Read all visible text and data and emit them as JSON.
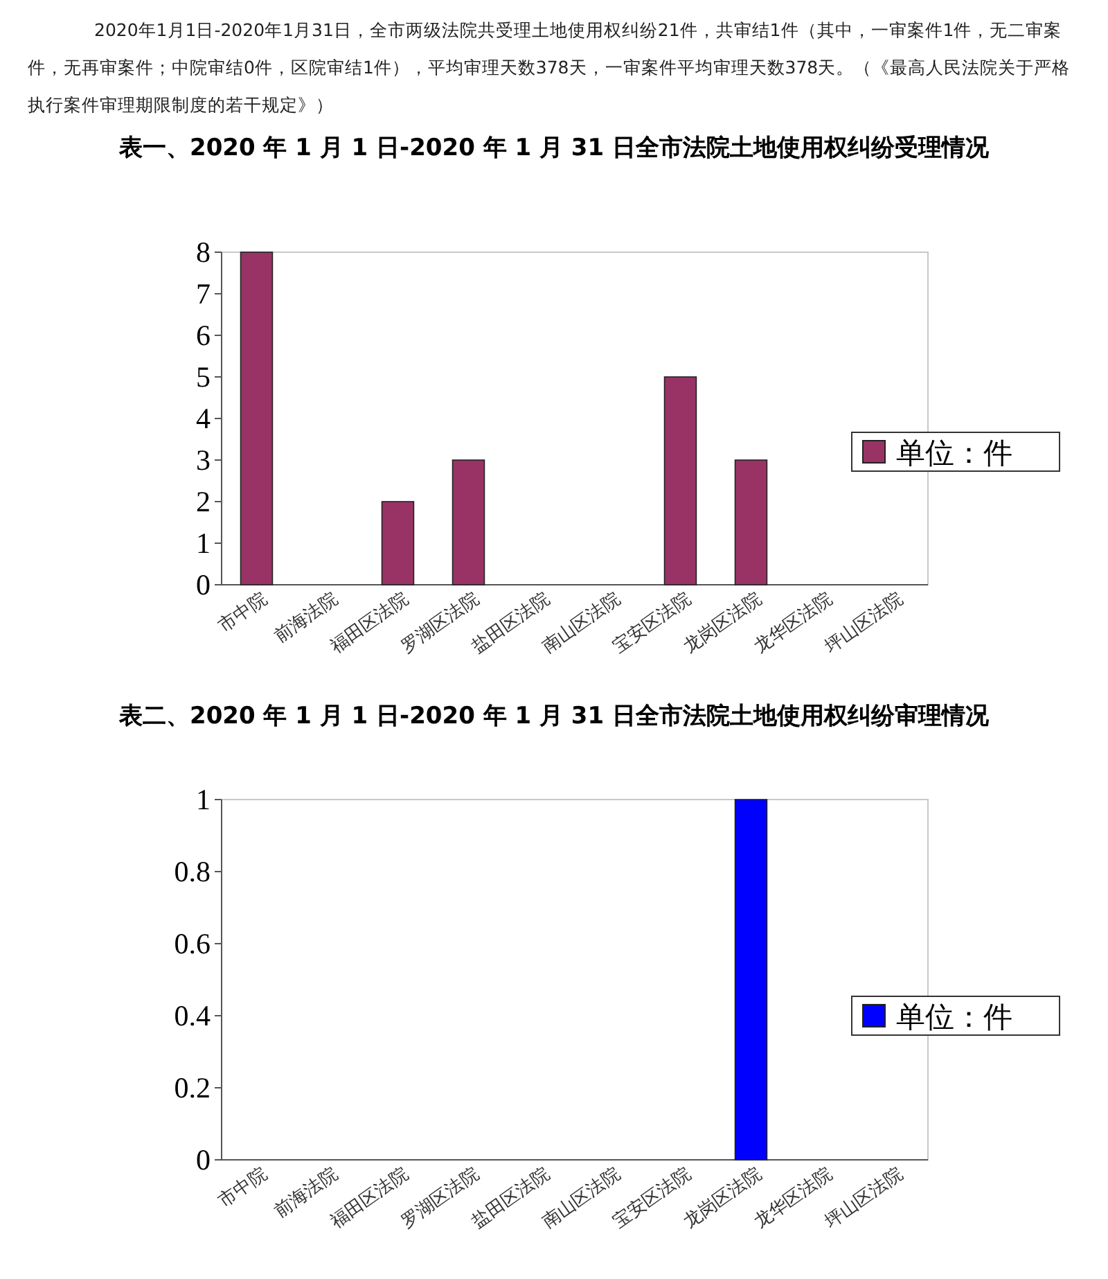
{
  "chart_data": [
    {
      "type": "bar",
      "title": "表一、2020 年 1 月 1 日-2020 年 1 月 31 日全市法院土地使用权纠纷受理情况",
      "annotations": [
        "2020年1月1日-2020年1月31日，全市两级法院共受理土地使用权纠纷21件，共审结1件（其中，一审案件1件，无二审案件，无再审案件；中院审结0件，区院审结1件），平均审理天数378天，一审案件平均审理天数378天。（《最高人民法院关于严格执行案件审理期限制度的若干规定》）"
      ],
      "categories": [
        "市中院",
        "前海法院",
        "福田区法院",
        "罗湖区法院",
        "盐田区法院",
        "南山区法院",
        "宝安区法院",
        "龙岗区法院",
        "龙华区法院",
        "坪山区法院"
      ],
      "series": [
        {
          "name": "单位：件",
          "color": "#993366",
          "values": [
            8,
            0,
            2,
            3,
            0,
            0,
            5,
            3,
            0,
            0
          ]
        }
      ],
      "ylim": [
        0,
        8
      ],
      "yticks": [
        0,
        1,
        2,
        3,
        4,
        5,
        6,
        7,
        8
      ],
      "legend": "right"
    },
    {
      "type": "bar",
      "title": "表二、2020 年 1 月 1 日-2020 年 1 月 31 日全市法院土地使用权纠纷审理情况",
      "categories": [
        "市中院",
        "前海法院",
        "福田区法院",
        "罗湖区法院",
        "盐田区法院",
        "南山区法院",
        "宝安区法院",
        "龙岗区法院",
        "龙华区法院",
        "坪山区法院"
      ],
      "series": [
        {
          "name": "单位：件",
          "color": "#0000ff",
          "values": [
            0,
            0,
            0,
            0,
            0,
            0,
            0,
            1,
            0,
            0
          ]
        }
      ],
      "ylim": [
        0,
        1
      ],
      "yticks": [
        0,
        0.2,
        0.4,
        0.6,
        0.8,
        1
      ],
      "legend": "right"
    }
  ]
}
